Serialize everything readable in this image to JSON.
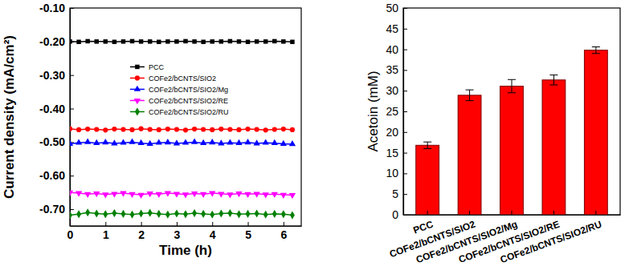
{
  "chart_data": [
    {
      "type": "line",
      "x_label": "Time (h)",
      "y_label": "Current density (mA/cm²)",
      "xlim": [
        0,
        6.5
      ],
      "xticks": [
        0,
        1,
        2,
        3,
        4,
        5,
        6
      ],
      "ylim": [
        -0.75,
        -0.1
      ],
      "yticks": [
        {
          "value": -0.1,
          "label": "-0.10"
        },
        {
          "value": -0.2,
          "label": "-0.20"
        },
        {
          "value": -0.3,
          "label": "-0.30"
        },
        {
          "value": -0.4,
          "label": "-0.40"
        },
        {
          "value": -0.5,
          "label": "-0.50"
        },
        {
          "value": -0.6,
          "label": "-0.60"
        },
        {
          "value": -0.7,
          "label": "-0.70"
        }
      ],
      "legend": "upper center",
      "x": [
        0,
        0.25,
        0.5,
        0.75,
        1,
        1.25,
        1.5,
        1.75,
        2,
        2.25,
        2.5,
        2.75,
        3,
        3.25,
        3.5,
        3.75,
        4,
        4.25,
        4.5,
        4.75,
        5,
        5.25,
        5.5,
        5.75,
        6,
        6.25
      ],
      "series": [
        {
          "name": "PCC",
          "color": "#000000",
          "marker": "square",
          "line_style": "solid",
          "values": [
            -0.2,
            -0.201,
            -0.199,
            -0.2,
            -0.2,
            -0.201,
            -0.2,
            -0.199,
            -0.2,
            -0.2,
            -0.201,
            -0.2,
            -0.2,
            -0.199,
            -0.2,
            -0.201,
            -0.2,
            -0.2,
            -0.199,
            -0.2,
            -0.201,
            -0.2,
            -0.2,
            -0.199,
            -0.2,
            -0.201
          ]
        },
        {
          "name": "COFe2/bCNTS/SIO2",
          "color": "#ff0000",
          "marker": "circle",
          "line_style": "solid",
          "values": [
            -0.46,
            -0.463,
            -0.461,
            -0.462,
            -0.464,
            -0.461,
            -0.462,
            -0.463,
            -0.46,
            -0.462,
            -0.463,
            -0.461,
            -0.462,
            -0.464,
            -0.461,
            -0.462,
            -0.463,
            -0.461,
            -0.462,
            -0.463,
            -0.461,
            -0.462,
            -0.464,
            -0.462,
            -0.461,
            -0.463
          ]
        },
        {
          "name": "COFe2/bCNTS/SIO2/Mg",
          "color": "#0000ff",
          "marker": "triangle",
          "line_style": "solid",
          "values": [
            -0.505,
            -0.502,
            -0.5,
            -0.503,
            -0.501,
            -0.504,
            -0.502,
            -0.5,
            -0.503,
            -0.505,
            -0.502,
            -0.501,
            -0.504,
            -0.502,
            -0.5,
            -0.503,
            -0.501,
            -0.504,
            -0.502,
            -0.503,
            -0.501,
            -0.504,
            -0.502,
            -0.503,
            -0.505,
            -0.506
          ]
        },
        {
          "name": "COFe2/bCNTS/SIO2/RE",
          "color": "#ff00ff",
          "marker": "triangle-down",
          "line_style": "solid",
          "values": [
            -0.65,
            -0.652,
            -0.655,
            -0.653,
            -0.656,
            -0.654,
            -0.652,
            -0.655,
            -0.657,
            -0.653,
            -0.655,
            -0.652,
            -0.654,
            -0.656,
            -0.653,
            -0.655,
            -0.652,
            -0.654,
            -0.656,
            -0.653,
            -0.655,
            -0.654,
            -0.656,
            -0.655,
            -0.657,
            -0.658
          ]
        },
        {
          "name": "COFe2/bCNTS/SIO2/RU",
          "color": "#008000",
          "marker": "diamond",
          "line_style": "solid",
          "values": [
            -0.718,
            -0.715,
            -0.71,
            -0.713,
            -0.715,
            -0.712,
            -0.714,
            -0.716,
            -0.713,
            -0.711,
            -0.714,
            -0.716,
            -0.713,
            -0.715,
            -0.712,
            -0.714,
            -0.716,
            -0.713,
            -0.712,
            -0.715,
            -0.714,
            -0.713,
            -0.716,
            -0.714,
            -0.715,
            -0.718
          ]
        }
      ]
    },
    {
      "type": "bar",
      "y_label": "Acetoin (mM)",
      "categories": [
        "PCC",
        "COFe2/bCNTS/SIO2",
        "COFe2/bCNTS/SIO2/Mg",
        "COFe2/bCNTS/SIO2/RE",
        "COFe2/bCNTS/SIO2/RU"
      ],
      "values": [
        16.8,
        28.9,
        31.1,
        32.6,
        39.8
      ],
      "errors": [
        0.8,
        1.3,
        1.6,
        1.2,
        0.8
      ],
      "color": "#ff0000",
      "ylim": [
        0,
        50
      ],
      "yticks": [
        0,
        5,
        10,
        15,
        20,
        25,
        30,
        35,
        40,
        45,
        50
      ]
    }
  ]
}
